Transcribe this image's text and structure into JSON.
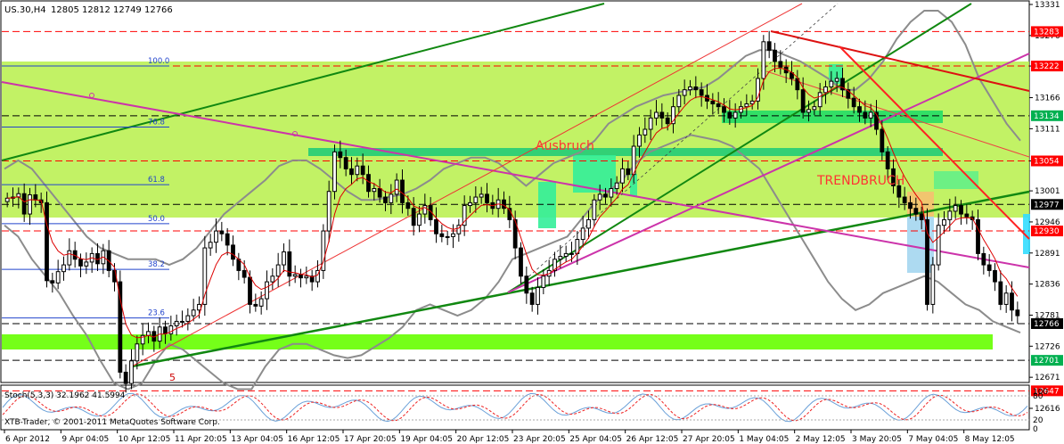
{
  "window": {
    "symbol": "US.30,H4",
    "ohlc": "12805 12812 12749 12766",
    "footer": "XTB-Trader, © 2001-2011 MetaQuotes Software Corp."
  },
  "indicator": {
    "label": "Stoch(5,3,3) 32.1962 41.5994",
    "levels": [
      "100",
      "80",
      "20",
      "0"
    ]
  },
  "annotations": {
    "ausbruch": "Ausbruch",
    "trendbruch": "TRENDBRUCH",
    "wave": "5"
  },
  "fib_levels": [
    {
      "label": "100.0",
      "price": 13222
    },
    {
      "label": "76.8",
      "price": 13114
    },
    {
      "label": "61.8",
      "price": 13012
    },
    {
      "label": "50.0",
      "price": 12943
    },
    {
      "label": "38.2",
      "price": 12862
    },
    {
      "label": "23.6",
      "price": 12776
    }
  ],
  "price_axis": {
    "ticks": [
      "13331",
      "13276",
      "13222",
      "13166",
      "13111",
      "13054",
      "13001",
      "12946",
      "12891",
      "12836",
      "12781",
      "12726",
      "12671",
      "12616"
    ],
    "badges": [
      {
        "label": "13283",
        "color": "#ff0000"
      },
      {
        "label": "13222",
        "color": "#ff0000"
      },
      {
        "label": "13134",
        "color": "#00b050"
      },
      {
        "label": "13054",
        "color": "#ff0000"
      },
      {
        "label": "12977",
        "color": "#000000"
      },
      {
        "label": "12930",
        "color": "#ff0000"
      },
      {
        "label": "12766",
        "color": "#000000"
      },
      {
        "label": "12701",
        "color": "#00b050"
      },
      {
        "label": "12647",
        "color": "#ff0000"
      }
    ]
  },
  "time_axis": [
    "6 Apr 2012",
    "9 Apr 04:05",
    "10 Apr 12:05",
    "11 Apr 20:05",
    "13 Apr 04:05",
    "16 Apr 12:05",
    "17 Apr 20:05",
    "19 Apr 04:05",
    "20 Apr 12:05",
    "23 Apr 20:05",
    "25 Apr 04:05",
    "26 Apr 12:05",
    "27 Apr 20:05",
    "1 May 04:05",
    "2 May 12:05",
    "3 May 20:05",
    "7 May 04:05",
    "8 May 12:05"
  ],
  "chart_data": {
    "type": "candlestick",
    "ylim": [
      12616,
      13331
    ],
    "closes": [
      12988,
      12990,
      12996,
      12960,
      12994,
      12985,
      12980,
      12842,
      12838,
      12858,
      12870,
      12895,
      12880,
      12868,
      12875,
      12890,
      12872,
      12895,
      12860,
      12840,
      12680,
      12660,
      12700,
      12730,
      12745,
      12752,
      12735,
      12760,
      12748,
      12762,
      12770,
      12770,
      12780,
      12790,
      12800,
      12900,
      12910,
      12930,
      12925,
      12905,
      12880,
      12860,
      12848,
      12800,
      12797,
      12810,
      12840,
      12850,
      12870,
      12893,
      12850,
      12853,
      12847,
      12850,
      12840,
      12860,
      12930,
      13000,
      13070,
      13060,
      13040,
      13030,
      13045,
      13030,
      13000,
      13005,
      12990,
      12980,
      12995,
      13020,
      12980,
      12970,
      12940,
      12960,
      12975,
      12950,
      12925,
      12920,
      12920,
      12925,
      12940,
      12975,
      12980,
      12990,
      12995,
      12980,
      12970,
      12985,
      12970,
      12950,
      12900,
      12850,
      12820,
      12800,
      12830,
      12850,
      12860,
      12880,
      12885,
      12890,
      12890,
      12915,
      12935,
      12950,
      12985,
      12995,
      12990,
      13005,
      13015,
      13040,
      13030,
      13080,
      13100,
      13110,
      13130,
      13140,
      13130,
      13120,
      13150,
      13170,
      13180,
      13185,
      13180,
      13170,
      13160,
      13155,
      13150,
      13140,
      13130,
      13140,
      13150,
      13155,
      13160,
      13200,
      13265,
      13250,
      13230,
      13220,
      13210,
      13200,
      13180,
      13140,
      13145,
      13150,
      13175,
      13185,
      13195,
      13200,
      13180,
      13165,
      13150,
      13140,
      13130,
      13140,
      13110,
      13070,
      13040,
      13010,
      12990,
      12980,
      12970,
      12960,
      12950,
      12800,
      12870,
      12940,
      12950,
      12965,
      12975,
      12960,
      12955,
      12950,
      12890,
      12870,
      12860,
      12840,
      12800,
      12820,
      12790,
      12780
    ],
    "bb_upper": [
      13040,
      13055,
      13040,
      13010,
      12980,
      12950,
      12920,
      12900,
      12890,
      12880,
      12880,
      12880,
      12870,
      12880,
      12900,
      12930,
      12960,
      12980,
      13000,
      13020,
      13045,
      13055,
      13055,
      13040,
      13020,
      13000,
      12985,
      12985,
      12990,
      12995,
      13005,
      13020,
      13040,
      13050,
      13060,
      13060,
      13050,
      13030,
      13010,
      13030,
      13050,
      13060,
      13070,
      13090,
      13120,
      13135,
      13150,
      13160,
      13170,
      13175,
      13180,
      13185,
      13200,
      13220,
      13240,
      13250,
      13250,
      13240,
      13230,
      13215,
      13200,
      13180,
      13180,
      13200,
      13230,
      13270,
      13300,
      13320,
      13320,
      13300,
      13260,
      13200,
      13160,
      13120,
      13090
    ],
    "bb_lower": [
      12940,
      12920,
      12880,
      12850,
      12820,
      12780,
      12745,
      12700,
      12660,
      12650,
      12660,
      12700,
      12730,
      12720,
      12700,
      12680,
      12660,
      12650,
      12650,
      12690,
      12720,
      12730,
      12730,
      12720,
      12710,
      12705,
      12710,
      12725,
      12740,
      12760,
      12790,
      12800,
      12790,
      12780,
      12790,
      12810,
      12840,
      12880,
      12890,
      12900,
      12910,
      12920,
      12950,
      12980,
      13000,
      13020,
      13050,
      13070,
      13080,
      13090,
      13100,
      13095,
      13090,
      13080,
      13060,
      13040,
      13000,
      12960,
      12920,
      12880,
      12840,
      12810,
      12790,
      12800,
      12820,
      12830,
      12840,
      12850,
      12840,
      12820,
      12800,
      12790,
      12770,
      12760,
      12750
    ]
  }
}
